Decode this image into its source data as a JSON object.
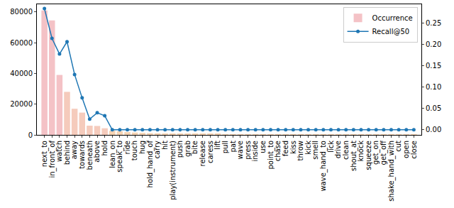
{
  "chart_data": {
    "type": "bar",
    "categories": [
      "next_to",
      "in_front_of",
      "watch",
      "behind",
      "away",
      "towards",
      "beneath",
      "above",
      "hold",
      "lean_on",
      "speak_to",
      "ride",
      "touch",
      "hug",
      "hold_hand_of",
      "carry",
      "hit",
      "play(instrument)",
      "push",
      "grab",
      "bite",
      "release",
      "caress",
      "lift",
      "pull",
      "pat",
      "wave",
      "press",
      "inside",
      "use",
      "point_to",
      "chase",
      "feed",
      "kiss",
      "throw",
      "kick",
      "smell",
      "wave_hand_to",
      "lick",
      "drive",
      "clean",
      "shout_at",
      "knock",
      "squeeze",
      "get_on",
      "get_off",
      "shake_hand_with",
      "cut",
      "open",
      "close"
    ],
    "series": [
      {
        "name": "Occurrence",
        "type": "bar",
        "colors": [
          "#f4c2c6",
          "#f4c2c6",
          "#f4c2c6",
          "#f5cbbc",
          "#f5cbbc",
          "#f5cbbc",
          "#f5cbbc",
          "#f5cbbc",
          "#f5cbbc",
          "#f5d3b3",
          "#f5d3b3",
          "#f5d3b3",
          "#f5d3b3",
          "#f5d3b3",
          "#f5d3b3",
          "#f5d3b3",
          "#f5d3b3",
          "#f5d3b3",
          "#f5d3b3",
          "#f5d3b3",
          "#f5d3b3",
          "#f5d3b3",
          "#f5d3b3",
          "#f5d3b3",
          "#f5d3b3",
          "#f5d3b3",
          "#f5d3b3",
          "#f5d3b3",
          "#f5d3b3",
          "#f5d3b3",
          "#f5d3b3",
          "#f5d3b3",
          "#f5d3b3",
          "#f5d3b3",
          "#f5d3b3",
          "#f5d3b3",
          "#f5d3b3",
          "#f5d3b3",
          "#f5d3b3",
          "#f5d3b3",
          "#f5d3b3",
          "#f5d3b3",
          "#f5d3b3",
          "#f5d3b3",
          "#f5d3b3",
          "#f5d3b3",
          "#f5d3b3",
          "#f5d3b3",
          "#f5d3b3",
          "#f5d3b3"
        ],
        "values": [
          81000,
          74500,
          39000,
          28000,
          17000,
          14500,
          6000,
          5800,
          4300,
          2700,
          2300,
          1800,
          1500,
          1300,
          1100,
          1000,
          900,
          800,
          700,
          650,
          600,
          550,
          500,
          470,
          440,
          410,
          380,
          350,
          330,
          310,
          290,
          270,
          250,
          230,
          210,
          195,
          180,
          165,
          150,
          140,
          130,
          120,
          110,
          100,
          90,
          80,
          70,
          60,
          50,
          40
        ]
      },
      {
        "name": "Recall@50",
        "type": "line",
        "axis": "y2",
        "color": "#1f77b4",
        "marker": "circle",
        "values": [
          0.285,
          0.215,
          0.178,
          0.207,
          0.13,
          0.075,
          0.025,
          0.04,
          0.033,
          0,
          0,
          0,
          0,
          0,
          0,
          0,
          0,
          0,
          0,
          0,
          0,
          0,
          0,
          0,
          0,
          0,
          0,
          0,
          0,
          0,
          0,
          0,
          0,
          0,
          0,
          0,
          0,
          0,
          0,
          0,
          0,
          0,
          0,
          0,
          0,
          0,
          0,
          0,
          0,
          0
        ]
      }
    ],
    "ylim": [
      0,
      85000
    ],
    "yticks": [
      0,
      20000,
      40000,
      60000,
      80000
    ],
    "y2lim": [
      -0.012,
      0.295
    ],
    "y2ticks": [
      {
        "value": 0,
        "label": "0.00"
      },
      {
        "value": 0.05,
        "label": "0.05"
      },
      {
        "value": 0.1,
        "label": "0.10"
      },
      {
        "value": 0.15,
        "label": "0.15"
      },
      {
        "value": 0.2,
        "label": "0.20"
      },
      {
        "value": 0.25,
        "label": "0.25"
      }
    ],
    "legend": "upper right",
    "grid": false
  }
}
